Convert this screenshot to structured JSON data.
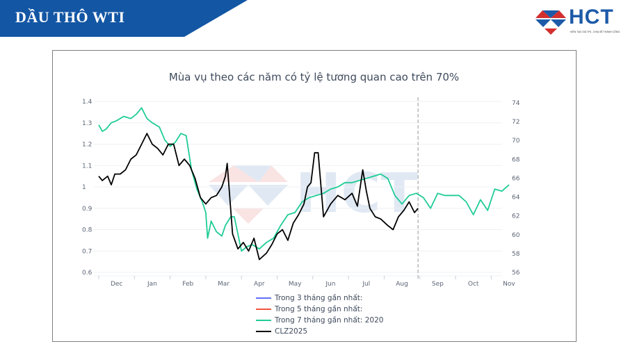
{
  "header": {
    "title": "DẦU THÔ WTI",
    "banner_color": "#1356a4",
    "logo": {
      "text": "HCT",
      "tagline": "KIẾN TẠO GIÁ TRỊ - CHIA SẺ THÀNH CÔNG"
    }
  },
  "chart_data": {
    "type": "line",
    "title": "Mùa vụ theo các năm có tỷ lệ tương quan cao trên 70%",
    "x_ticks": [
      "Dec",
      "Jan",
      "Feb",
      "Mar",
      "Apr",
      "May",
      "Jun",
      "Jul",
      "Aug",
      "Sep",
      "Oct",
      "Nov"
    ],
    "y_left": {
      "ticks": [
        "1.4",
        "1.3",
        "1.2",
        "1.1",
        "1",
        "0.9",
        "0.8",
        "0.7",
        "0.6"
      ],
      "range": [
        0.6,
        1.4
      ]
    },
    "y_right": {
      "ticks": [
        "74",
        "72",
        "70",
        "68",
        "66",
        "64",
        "62",
        "60",
        "58",
        "56"
      ],
      "range": [
        56,
        74
      ]
    },
    "grid": true,
    "current_date_marker": "dashed vertical line between Aug and Sep",
    "legend_position": "bottom",
    "legend": [
      {
        "label": "Trong 3 tháng gần nhất:",
        "color": "#636efa"
      },
      {
        "label": "Trong 5 tháng gần nhất:",
        "color": "#ef553b"
      },
      {
        "label": "Trong 7 tháng gần nhất: 2020",
        "color": "#1fcc96"
      },
      {
        "label": "CLZ2025",
        "color": "#000000"
      }
    ],
    "series": [
      {
        "name": "Trong 7 tháng gần nhất: 2020",
        "axis": "left",
        "color": "#1fcc96",
        "x_months": [
          0,
          0.1,
          0.2,
          0.35,
          0.5,
          0.7,
          0.9,
          1.05,
          1.2,
          1.35,
          1.5,
          1.7,
          1.85,
          2.0,
          2.15,
          2.3,
          2.45,
          2.6,
          2.75,
          2.9,
          3.0,
          3.05,
          3.15,
          3.3,
          3.45,
          3.55,
          3.7,
          3.8,
          4.0,
          4.15,
          4.3,
          4.5,
          4.7,
          4.9,
          5.1,
          5.3,
          5.5,
          5.7,
          5.9,
          6.1,
          6.3,
          6.5,
          6.7,
          6.9,
          7.1,
          7.3,
          7.5,
          7.7,
          7.9,
          8.1,
          8.3,
          8.5,
          8.7,
          8.9,
          9.1,
          9.3,
          9.5,
          9.7,
          9.9,
          10.1,
          10.3,
          10.5,
          10.7,
          10.9,
          11.1,
          11.3,
          11.5
        ],
        "values": [
          1.29,
          1.26,
          1.27,
          1.3,
          1.31,
          1.33,
          1.32,
          1.34,
          1.37,
          1.32,
          1.3,
          1.28,
          1.22,
          1.19,
          1.21,
          1.25,
          1.24,
          1.08,
          0.99,
          0.93,
          0.88,
          0.76,
          0.84,
          0.79,
          0.77,
          0.82,
          0.86,
          0.86,
          0.7,
          0.72,
          0.73,
          0.71,
          0.74,
          0.76,
          0.82,
          0.87,
          0.88,
          0.93,
          0.95,
          0.96,
          0.97,
          0.99,
          1.0,
          1.02,
          1.02,
          1.03,
          1.04,
          1.05,
          1.06,
          1.04,
          0.96,
          0.92,
          0.96,
          0.97,
          0.95,
          0.9,
          0.97,
          0.96,
          0.96,
          0.96,
          0.93,
          0.87,
          0.94,
          0.89,
          0.99,
          0.98,
          1.01
        ]
      },
      {
        "name": "CLZ2025",
        "axis": "left",
        "color": "#000000",
        "x_months": [
          0,
          0.1,
          0.25,
          0.35,
          0.45,
          0.6,
          0.75,
          0.9,
          1.05,
          1.2,
          1.35,
          1.5,
          1.65,
          1.8,
          1.95,
          2.1,
          2.25,
          2.4,
          2.55,
          2.7,
          2.85,
          3.0,
          3.15,
          3.3,
          3.45,
          3.55,
          3.6,
          3.75,
          3.9,
          4.05,
          4.2,
          4.35,
          4.5,
          4.7,
          4.85,
          5.0,
          5.15,
          5.3,
          5.45,
          5.6,
          5.75,
          5.85,
          5.95,
          6.05,
          6.15,
          6.3,
          6.5,
          6.7,
          6.9,
          7.1,
          7.25,
          7.4,
          7.5,
          7.6,
          7.75,
          7.9,
          8.1,
          8.25,
          8.4,
          8.55,
          8.7,
          8.85,
          8.95
        ],
        "values": [
          1.05,
          1.03,
          1.05,
          1.01,
          1.06,
          1.06,
          1.08,
          1.13,
          1.15,
          1.2,
          1.25,
          1.2,
          1.18,
          1.15,
          1.2,
          1.2,
          1.1,
          1.13,
          1.1,
          1.04,
          0.95,
          0.92,
          0.95,
          0.96,
          1.0,
          1.05,
          1.11,
          0.78,
          0.71,
          0.74,
          0.7,
          0.76,
          0.66,
          0.69,
          0.73,
          0.78,
          0.8,
          0.75,
          0.83,
          0.87,
          0.92,
          1.0,
          1.02,
          1.16,
          1.16,
          0.86,
          0.92,
          0.96,
          0.94,
          0.97,
          0.91,
          1.08,
          0.98,
          0.9,
          0.86,
          0.85,
          0.82,
          0.8,
          0.86,
          0.89,
          0.93,
          0.88,
          0.9
        ]
      }
    ]
  }
}
